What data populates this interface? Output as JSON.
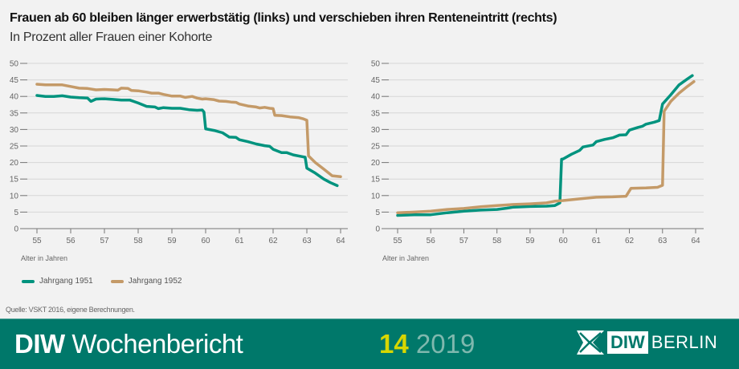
{
  "header": {
    "title": "Frauen ab 60 bleiben länger erwerbstätig (links) und verschieben ihren Renteneintritt (rechts)",
    "subtitle": "In Prozent aller Frauen einer Kohorte"
  },
  "colors": {
    "series_1951": "#00937e",
    "series_1952": "#c49a68",
    "footer": "#00786a",
    "issue_number": "#d7d600"
  },
  "legend": [
    {
      "label": "Jahrgang 1951",
      "color": "#00937e"
    },
    {
      "label": "Jahrgang 1952",
      "color": "#c49a68"
    }
  ],
  "chart_data": [
    {
      "type": "line",
      "xlabel": "Alter in Jahren",
      "ylabel": "",
      "xlim": [
        55,
        64
      ],
      "ylim": [
        0,
        50
      ],
      "xticks": [
        "55",
        "56",
        "57",
        "58",
        "59",
        "60",
        "61",
        "62",
        "63",
        "64"
      ],
      "yticks": [
        "0",
        "5",
        "10",
        "15",
        "20",
        "25",
        "30",
        "35",
        "40",
        "45",
        "50"
      ],
      "grid": true,
      "series": [
        {
          "name": "Jahrgang 1951",
          "x": [
            55,
            55.25,
            55.5,
            55.75,
            56,
            56.25,
            56.5,
            56.6,
            56.75,
            57,
            57.25,
            57.5,
            57.75,
            58,
            58.25,
            58.5,
            58.6,
            58.75,
            59,
            59.25,
            59.5,
            59.75,
            59.9,
            59.95,
            60,
            60.25,
            60.5,
            60.7,
            60.9,
            61,
            61.25,
            61.5,
            61.75,
            61.9,
            62,
            62.25,
            62.4,
            62.6,
            62.85,
            62.95,
            63,
            63.25,
            63.5,
            63.7,
            63.9
          ],
          "y": [
            40.3,
            40,
            40,
            40.2,
            39.8,
            39.6,
            39.5,
            38.5,
            39.2,
            39.3,
            39.1,
            38.9,
            38.9,
            38,
            37,
            36.8,
            36.3,
            36.6,
            36.4,
            36.4,
            36,
            35.8,
            35.9,
            35.3,
            30.2,
            29.7,
            29,
            27.7,
            27.6,
            26.9,
            26.3,
            25.6,
            25.1,
            24.9,
            24,
            23,
            23,
            22.3,
            21.8,
            21.6,
            18.3,
            16.8,
            15,
            13.9,
            13
          ]
        },
        {
          "name": "Jahrgang 1952",
          "x": [
            55,
            55.25,
            55.5,
            55.75,
            56,
            56.25,
            56.5,
            56.75,
            57,
            57.25,
            57.4,
            57.5,
            57.7,
            57.8,
            58,
            58.25,
            58.4,
            58.6,
            58.75,
            59,
            59.25,
            59.4,
            59.6,
            59.75,
            59.9,
            60,
            60.25,
            60.4,
            60.6,
            60.75,
            60.9,
            61,
            61.25,
            61.5,
            61.6,
            61.75,
            61.9,
            62,
            62.05,
            62.25,
            62.5,
            62.75,
            62.9,
            63,
            63.05,
            63.25,
            63.5,
            63.75,
            64
          ],
          "y": [
            43.7,
            43.5,
            43.5,
            43.5,
            43,
            42.5,
            42.4,
            42,
            42.1,
            42,
            41.9,
            42.5,
            42.4,
            41.8,
            41.7,
            41.3,
            41,
            41,
            40.6,
            40.1,
            40.1,
            39.7,
            40,
            39.5,
            39.2,
            39.3,
            39,
            38.6,
            38.5,
            38.3,
            38.2,
            37.7,
            37.1,
            36.8,
            36.5,
            36.7,
            36.4,
            36.3,
            34.3,
            34.2,
            33.8,
            33.6,
            33.2,
            32.8,
            22,
            20,
            18,
            16,
            15.7
          ]
        }
      ]
    },
    {
      "type": "line",
      "xlabel": "Alter in Jahren",
      "ylabel": "",
      "xlim": [
        55,
        64
      ],
      "ylim": [
        0,
        50
      ],
      "xticks": [
        "55",
        "56",
        "57",
        "58",
        "59",
        "60",
        "61",
        "62",
        "63",
        "64"
      ],
      "yticks": [
        "0",
        "5",
        "10",
        "15",
        "20",
        "25",
        "30",
        "35",
        "40",
        "45",
        "50"
      ],
      "grid": true,
      "series": [
        {
          "name": "Jahrgang 1951",
          "x": [
            55,
            55.5,
            56,
            56.5,
            57,
            57.5,
            58,
            58.3,
            58.5,
            59,
            59.5,
            59.75,
            59.9,
            59.95,
            60,
            60.25,
            60.5,
            60.6,
            60.9,
            61,
            61.25,
            61.5,
            61.7,
            61.9,
            62,
            62.25,
            62.4,
            62.5,
            62.75,
            62.9,
            63,
            63.25,
            63.5,
            63.75,
            63.9
          ],
          "y": [
            4,
            4.2,
            4.2,
            4.8,
            5.3,
            5.6,
            5.8,
            6.2,
            6.5,
            6.7,
            6.8,
            7,
            7.8,
            21,
            21.1,
            22.5,
            23.7,
            24.7,
            25.3,
            26.3,
            27,
            27.5,
            28.3,
            28.4,
            29.8,
            30.6,
            31,
            31.6,
            32.2,
            32.7,
            37.7,
            40.5,
            43.5,
            45.3,
            46.3
          ]
        },
        {
          "name": "Jahrgang 1952",
          "x": [
            55,
            55.5,
            56,
            56.5,
            57,
            57.5,
            58,
            58.5,
            59,
            59.5,
            59.75,
            60,
            60.5,
            61,
            61.5,
            61.9,
            62.05,
            62.5,
            62.85,
            63,
            63.05,
            63.25,
            63.5,
            63.75,
            63.95
          ],
          "y": [
            4.8,
            5,
            5.3,
            5.8,
            6.1,
            6.6,
            7,
            7.3,
            7.5,
            7.8,
            8.3,
            8.5,
            9,
            9.5,
            9.6,
            9.8,
            12.2,
            12.3,
            12.5,
            13.1,
            35.5,
            38.5,
            41,
            43,
            44.5
          ]
        }
      ]
    }
  ],
  "source": "Quelle: VSKT 2016, eigene Berechnungen.",
  "footer": {
    "brand_bold": "DIW",
    "brand_rest": "Wochenbericht",
    "issue_number": "14",
    "issue_year": "2019",
    "logo_diw": "DIW",
    "logo_berlin": "BERLIN"
  }
}
